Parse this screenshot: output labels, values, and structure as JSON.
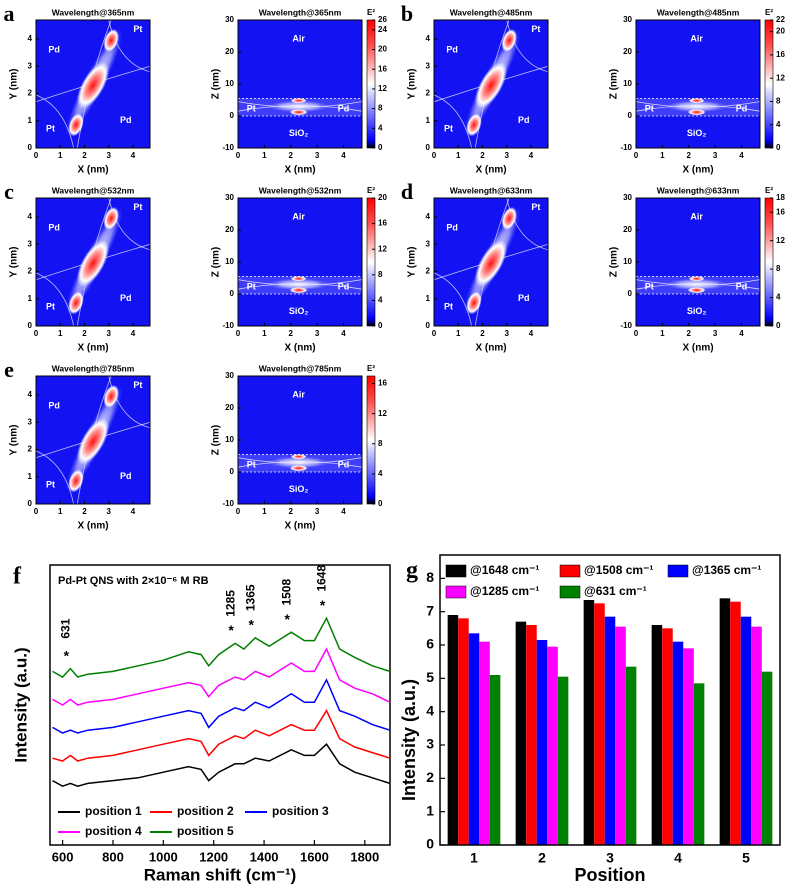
{
  "chart_data": [
    {
      "type": "heatmap",
      "panel": "a",
      "title": "Wavelength@365nm",
      "xlabel": "X (nm)",
      "ylabel": "Y (nm)",
      "xlim": [
        0,
        4.7
      ],
      "ylim": [
        0,
        4.7
      ],
      "xticks": [
        0,
        1,
        2,
        3,
        4
      ],
      "yticks": [
        0,
        1,
        2,
        3,
        4
      ],
      "regions": [
        "Pd",
        "Pt",
        "Pd",
        "Pt"
      ]
    },
    {
      "type": "heatmap",
      "title": "Wavelength@365nm",
      "xlabel": "X (nm)",
      "ylabel": "Z (nm)",
      "xlim": [
        0,
        4.7
      ],
      "ylim": [
        -10,
        30
      ],
      "xticks": [
        0,
        1,
        2,
        3,
        4
      ],
      "yticks": [
        -10,
        0,
        10,
        20,
        30
      ],
      "regions": [
        "Air",
        "Pt",
        "Pd",
        "SiO₂"
      ],
      "colorbar": {
        "label": "E²",
        "lim": [
          0,
          26
        ],
        "ticks": [
          0,
          4,
          8,
          12,
          16,
          20,
          24,
          26
        ]
      }
    },
    {
      "type": "heatmap",
      "panel": "b",
      "title": "Wavelength@485nm",
      "xlabel": "X (nm)",
      "ylabel": "Y (nm)",
      "xlim": [
        0,
        4.7
      ],
      "ylim": [
        0,
        4.7
      ],
      "xticks": [
        0,
        1,
        2,
        3,
        4
      ],
      "yticks": [
        0,
        1,
        2,
        3,
        4
      ],
      "regions": [
        "Pd",
        "Pt",
        "Pd",
        "Pt"
      ]
    },
    {
      "type": "heatmap",
      "title": "Wavelength@485nm",
      "xlabel": "X (nm)",
      "ylabel": "Z (nm)",
      "xlim": [
        0,
        4.7
      ],
      "ylim": [
        -10,
        30
      ],
      "xticks": [
        0,
        1,
        2,
        3,
        4
      ],
      "yticks": [
        -10,
        0,
        10,
        20,
        30
      ],
      "regions": [
        "Air",
        "Pt",
        "Pd",
        "SiO₂"
      ],
      "colorbar": {
        "label": "E²",
        "lim": [
          0,
          22
        ],
        "ticks": [
          0,
          4,
          8,
          12,
          16,
          20,
          22
        ]
      }
    },
    {
      "type": "heatmap",
      "panel": "c",
      "title": "Wavelength@532nm",
      "xlabel": "X (nm)",
      "ylabel": "Y (nm)",
      "xlim": [
        0,
        4.7
      ],
      "ylim": [
        0,
        4.7
      ],
      "xticks": [
        0,
        1,
        2,
        3,
        4
      ],
      "yticks": [
        0,
        1,
        2,
        3,
        4
      ],
      "regions": [
        "Pd",
        "Pt",
        "Pd",
        "Pt"
      ]
    },
    {
      "type": "heatmap",
      "title": "Wavelength@532nm",
      "xlabel": "X (nm)",
      "ylabel": "Z (nm)",
      "xlim": [
        0,
        4.7
      ],
      "ylim": [
        -10,
        30
      ],
      "xticks": [
        0,
        1,
        2,
        3,
        4
      ],
      "yticks": [
        -10,
        0,
        10,
        20,
        30
      ],
      "regions": [
        "Air",
        "Pt",
        "Pd",
        "SiO₂"
      ],
      "colorbar": {
        "label": "E²",
        "lim": [
          0,
          20
        ],
        "ticks": [
          0,
          4,
          8,
          12,
          16,
          20
        ]
      }
    },
    {
      "type": "heatmap",
      "panel": "d",
      "title": "Wavelength@633nm",
      "xlabel": "X (nm)",
      "ylabel": "Y (nm)",
      "xlim": [
        0,
        4.7
      ],
      "ylim": [
        0,
        4.7
      ],
      "xticks": [
        0,
        1,
        2,
        3,
        4
      ],
      "yticks": [
        0,
        1,
        2,
        3,
        4
      ],
      "regions": [
        "Pd",
        "Pt",
        "Pd",
        "Pt"
      ]
    },
    {
      "type": "heatmap",
      "title": "Wavelength@633nm",
      "xlabel": "X (nm)",
      "ylabel": "Z (nm)",
      "xlim": [
        0,
        4.7
      ],
      "ylim": [
        -10,
        30
      ],
      "xticks": [
        0,
        1,
        2,
        3,
        4
      ],
      "yticks": [
        -10,
        0,
        10,
        20,
        30
      ],
      "regions": [
        "Air",
        "Pt",
        "Pd",
        "SiO₂"
      ],
      "colorbar": {
        "label": "E²",
        "lim": [
          0,
          18
        ],
        "ticks": [
          0,
          4,
          8,
          12,
          16,
          18
        ]
      }
    },
    {
      "type": "heatmap",
      "panel": "e",
      "title": "Wavelength@785nm",
      "xlabel": "X (nm)",
      "ylabel": "Y (nm)",
      "xlim": [
        0,
        4.7
      ],
      "ylim": [
        0,
        4.7
      ],
      "xticks": [
        0,
        1,
        2,
        3,
        4
      ],
      "yticks": [
        0,
        1,
        2,
        3,
        4
      ],
      "regions": [
        "Pd",
        "Pt",
        "Pd",
        "Pt"
      ]
    },
    {
      "type": "heatmap",
      "title": "Wavelength@785nm",
      "xlabel": "X (nm)",
      "ylabel": "Z (nm)",
      "xlim": [
        0,
        4.7
      ],
      "ylim": [
        -10,
        30
      ],
      "xticks": [
        0,
        1,
        2,
        3,
        4
      ],
      "yticks": [
        -10,
        0,
        10,
        20,
        30
      ],
      "regions": [
        "Air",
        "Pt",
        "Pd",
        "SiO₂"
      ],
      "colorbar": {
        "label": "E²",
        "lim": [
          0,
          17
        ],
        "ticks": [
          0,
          4,
          8,
          12,
          16
        ]
      }
    },
    {
      "type": "line",
      "panel": "f",
      "title": "Pd-Pt QNS with 2×10⁻⁶ M RB",
      "xlabel": "Raman shift (cm⁻¹)",
      "ylabel": "Intensity (a.u.)",
      "xlim": [
        550,
        1900
      ],
      "ylim": [
        0,
        10
      ],
      "xticks": [
        600,
        800,
        1000,
        1200,
        1400,
        1600,
        1800
      ],
      "peak_marker": "*",
      "peaks": [
        "631",
        "1285",
        "1365",
        "1508",
        "1648"
      ],
      "x": [
        560,
        600,
        631,
        660,
        700,
        800,
        900,
        1000,
        1100,
        1150,
        1180,
        1220,
        1285,
        1320,
        1365,
        1420,
        1508,
        1560,
        1600,
        1648,
        1700,
        1760,
        1830,
        1900
      ],
      "series": [
        {
          "name": "position 1",
          "color": "#000000",
          "values": [
            2.3,
            2.1,
            2.2,
            2.1,
            2.2,
            2.3,
            2.4,
            2.6,
            2.8,
            2.7,
            2.3,
            2.6,
            2.9,
            2.9,
            3.1,
            3.0,
            3.4,
            3.2,
            3.2,
            3.6,
            2.9,
            2.6,
            2.4,
            2.2
          ]
        },
        {
          "name": "position 2",
          "color": "#ff0000",
          "values": [
            3.1,
            3.0,
            3.2,
            3.0,
            3.1,
            3.2,
            3.4,
            3.6,
            3.8,
            3.7,
            3.2,
            3.6,
            3.9,
            3.8,
            4.1,
            3.9,
            4.3,
            4.1,
            4.1,
            4.8,
            3.8,
            3.5,
            3.3,
            3.1
          ]
        },
        {
          "name": "position 3",
          "color": "#0000ff",
          "values": [
            4.2,
            4.0,
            4.1,
            4.0,
            4.1,
            4.2,
            4.4,
            4.6,
            4.8,
            4.7,
            4.2,
            4.6,
            4.9,
            4.8,
            5.1,
            4.9,
            5.4,
            5.1,
            5.1,
            5.9,
            4.8,
            4.6,
            4.3,
            4.1
          ]
        },
        {
          "name": "position 4",
          "color": "#ff00ff",
          "values": [
            5.2,
            5.0,
            5.2,
            5.0,
            5.1,
            5.2,
            5.4,
            5.6,
            5.8,
            5.7,
            5.3,
            5.7,
            6.0,
            5.9,
            6.2,
            6.0,
            6.5,
            6.2,
            6.2,
            7.0,
            5.9,
            5.6,
            5.4,
            5.1
          ]
        },
        {
          "name": "position 5",
          "color": "#008000",
          "values": [
            6.2,
            6.0,
            6.3,
            6.0,
            6.1,
            6.2,
            6.4,
            6.6,
            6.9,
            6.8,
            6.4,
            6.8,
            7.2,
            7.0,
            7.4,
            7.1,
            7.6,
            7.3,
            7.3,
            8.1,
            7.0,
            6.7,
            6.4,
            6.2
          ]
        }
      ]
    },
    {
      "type": "bar",
      "panel": "g",
      "xlabel": "Position",
      "ylabel": "Intensity (a.u.)",
      "categories": [
        "1",
        "2",
        "3",
        "4",
        "5"
      ],
      "ylim": [
        0,
        8.7
      ],
      "yticks": [
        0,
        1,
        2,
        3,
        4,
        5,
        6,
        7,
        8
      ],
      "series": [
        {
          "name": "@1648 cm⁻¹",
          "color": "#000000",
          "values": [
            6.9,
            6.7,
            7.35,
            6.6,
            7.4
          ]
        },
        {
          "name": "@1508 cm⁻¹",
          "color": "#ff0000",
          "values": [
            6.8,
            6.6,
            7.25,
            6.5,
            7.3
          ]
        },
        {
          "name": "@1365 cm⁻¹",
          "color": "#0000ff",
          "values": [
            6.35,
            6.15,
            6.85,
            6.1,
            6.85
          ]
        },
        {
          "name": "@1285 cm⁻¹",
          "color": "#ff00ff",
          "values": [
            6.1,
            5.95,
            6.55,
            5.9,
            6.55
          ]
        },
        {
          "name": "@631 cm⁻¹",
          "color": "#008000",
          "values": [
            5.1,
            5.05,
            5.35,
            4.85,
            5.2
          ]
        }
      ]
    }
  ]
}
